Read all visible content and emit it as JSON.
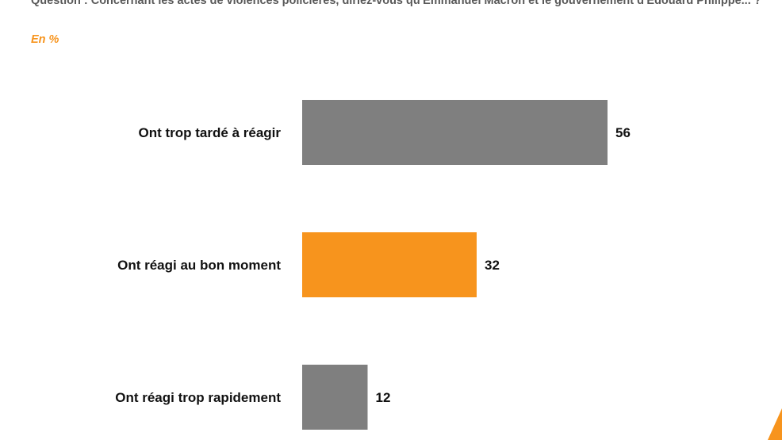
{
  "header": {
    "question": "Question : Concernant les actes de violences policières, diriez-vous qu'Emmanuel Macron et le gouvernement d'Edouard Philippe... ?",
    "unit": "En %"
  },
  "colors": {
    "gray_bar": "#7f7f7f",
    "orange_bar": "#f7941d",
    "accent": "#f7941d"
  },
  "chart_data": {
    "type": "bar",
    "orientation": "horizontal",
    "categories": [
      "Ont trop tardé à réagir",
      "Ont réagi au bon moment",
      "Ont réagi trop rapidement"
    ],
    "values": [
      56,
      32,
      12
    ],
    "bar_colors": [
      "#7f7f7f",
      "#f7941d",
      "#7f7f7f"
    ],
    "xlim": [
      0,
      100
    ],
    "grid": false,
    "legend": "none"
  }
}
